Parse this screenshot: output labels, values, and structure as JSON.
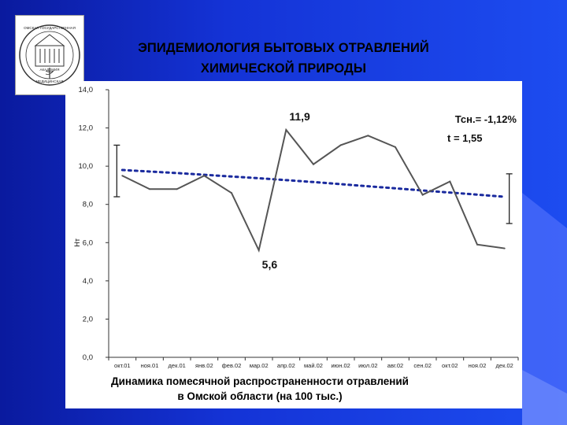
{
  "slide": {
    "title_line1": "ЭПИДЕМИОЛОГИЯ БЫТОВЫХ ОТРАВЛЕНИЙ",
    "title_line2": "ХИМИЧЕСКОЙ ПРИРОДЫ",
    "caption_line1": "Динамика помесячной распространенности отравлений",
    "caption_line2": "в Омской области (на 100 тыс.)",
    "background_color": "#1433d6",
    "logo": {
      "text_top": "ОМСКАЯ ГОСУДАРСТВЕННАЯ",
      "text_mid": "АКАДЕМИЯ",
      "text_bottom": "МЕДИЦИНСКАЯ"
    }
  },
  "chart_data": {
    "type": "line",
    "categories": [
      "окт.01",
      "ноя.01",
      "дек.01",
      "янв.02",
      "фев.02",
      "мар.02",
      "апр.02",
      "май.02",
      "июн.02",
      "июл.02",
      "авг.02",
      "сен.02",
      "окт.02",
      "ноя.02",
      "дек.02"
    ],
    "series": [
      {
        "values": [
          9.5,
          8.8,
          8.8,
          9.5,
          8.6,
          5.6,
          11.9,
          10.1,
          11.1,
          11.6,
          11.0,
          8.5,
          9.2,
          5.9,
          5.7
        ],
        "color": "#555555",
        "style": "solid"
      },
      {
        "type": "trend",
        "values": [
          9.8,
          9.72,
          9.64,
          9.55,
          9.46,
          9.37,
          9.27,
          9.17,
          9.06,
          8.95,
          8.84,
          8.73,
          8.62,
          8.51,
          8.4
        ],
        "color": "#1a2a9e",
        "style": "dotted"
      }
    ],
    "error_bars": [
      {
        "category": "окт.01",
        "low": 8.4,
        "high": 11.1
      },
      {
        "category": "дек.02",
        "low": 7.0,
        "high": 9.6
      }
    ],
    "annotations": {
      "max_label": "11,9",
      "min_label": "5,6",
      "trend_rate": "Тсн.= -1,12%",
      "t_stat": "t = 1,55"
    },
    "y_ticks": [
      "14,0",
      "12,0",
      "10,0",
      "8,0",
      "6,0",
      "4,0",
      "2,0",
      "0,0"
    ],
    "ylabel": "Нт",
    "xlabel": "",
    "ylim": [
      0,
      14
    ],
    "grid": false
  }
}
